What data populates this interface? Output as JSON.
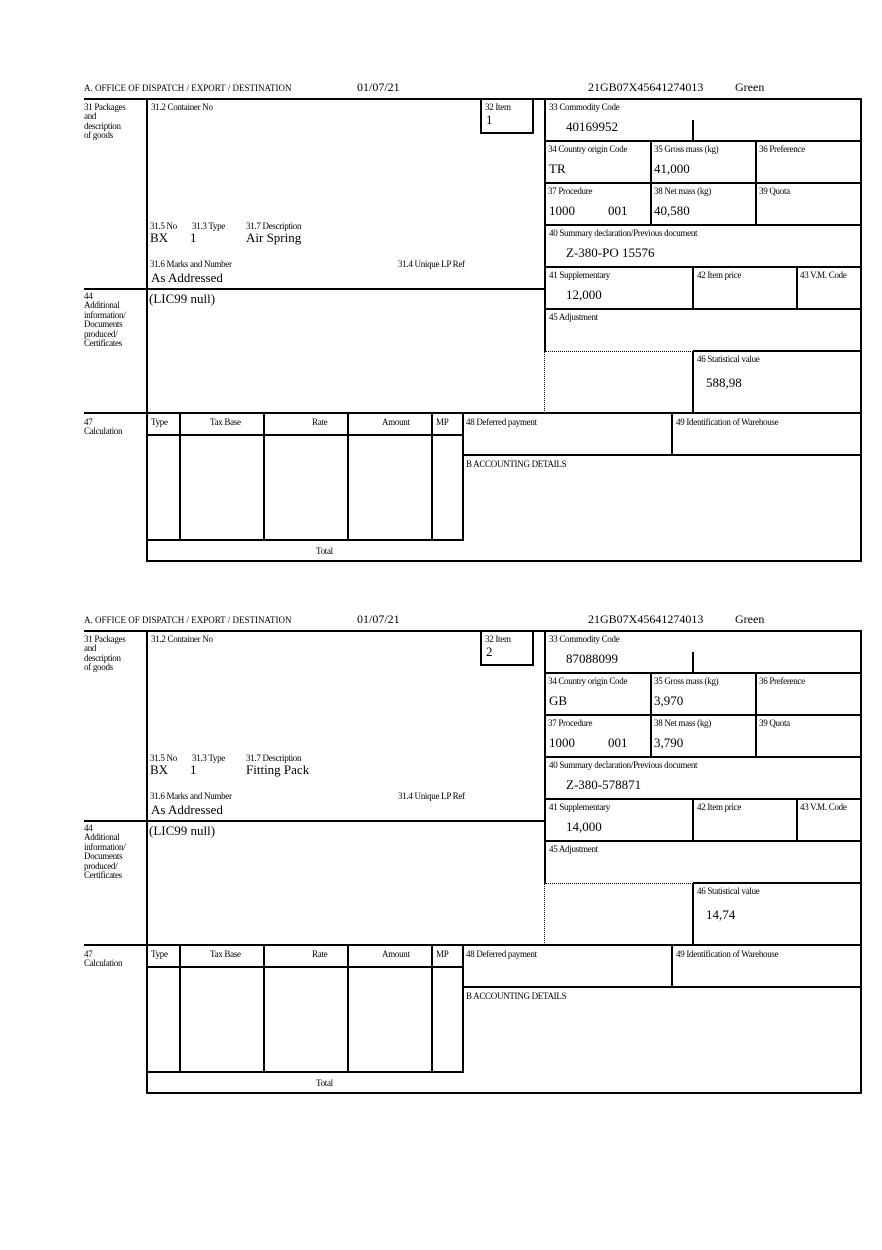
{
  "labels": {
    "office": "A.  OFFICE OF DISPATCH / EXPORT / DESTINATION",
    "box31": "31 Packages\nand\ndescription\nof goods",
    "container": "31.2 Container No",
    "item": "32 Item",
    "no": "31.5 No",
    "type": "31.3 Type",
    "description": "31.7 Description",
    "marks": "31.6 Marks and Number",
    "unique_ref": "31.4 Unique LP Ref",
    "box44": "44\nAdditional\ninformation/\nDocuments\nproduced/\nCertificates",
    "commodity": "33 Commodity Code",
    "origin": "34 Country origin Code",
    "gross": "35 Gross mass (kg)",
    "preference": "36 Preference",
    "procedure": "37 Procedure",
    "net": "38 Net mass (kg)",
    "quota": "39 Quota",
    "summary": "40 Summary declaration/Previous document",
    "supplementary": "41 Supplementary",
    "item_price": "42 Item price",
    "vm_code": "43 V.M. Code",
    "adjustment": "45 Adjustment",
    "statistical": "46 Statistical value",
    "box47": "47\nCalculation",
    "calc_type": "Type",
    "calc_tax_base": "Tax Base",
    "calc_rate": "Rate",
    "calc_amount": "Amount",
    "calc_mp": "MP",
    "deferred": "48 Deferred payment",
    "warehouse": "49 Identification of Warehouse",
    "accounting": "B ACCOUNTING DETAILS",
    "total": "Total"
  },
  "forms": [
    {
      "date": "01/07/21",
      "reference": "21GB07X45641274013",
      "route": "Green",
      "item": "1",
      "package_no": "BX",
      "package_type": "1",
      "description": "Air Spring",
      "marks": "As Addressed",
      "additional_info": "(LIC99 null)",
      "commodity_code": "40169952",
      "origin": "TR",
      "gross_mass": "41,000",
      "procedure": "1000",
      "procedure_add": "001",
      "net_mass": "40,580",
      "previous_document": "Z-380-PO 15576",
      "supplementary": "12,000",
      "statistical_value": "588,98"
    },
    {
      "date": "01/07/21",
      "reference": "21GB07X45641274013",
      "route": "Green",
      "item": "2",
      "package_no": "BX",
      "package_type": "1",
      "description": "Fitting Pack",
      "marks": "As Addressed",
      "additional_info": "(LIC99 null)",
      "commodity_code": "87088099",
      "origin": "GB",
      "gross_mass": "3,970",
      "procedure": "1000",
      "procedure_add": "001",
      "net_mass": "3,790",
      "previous_document": "Z-380-578871",
      "supplementary": "14,000",
      "statistical_value": "14,74"
    }
  ]
}
